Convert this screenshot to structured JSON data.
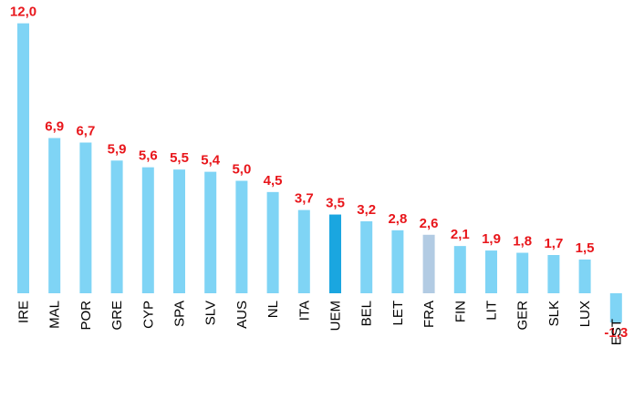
{
  "chart_data": {
    "type": "bar",
    "title": "",
    "xlabel": "",
    "ylabel": "",
    "categories": [
      "IRE",
      "MAL",
      "POR",
      "GRE",
      "CYP",
      "SPA",
      "SLV",
      "AUS",
      "NL",
      "ITA",
      "UEM",
      "BEL",
      "LET",
      "FRA",
      "FIN",
      "LIT",
      "GER",
      "SLK",
      "LUX",
      "EST"
    ],
    "values": [
      12.0,
      6.9,
      6.7,
      5.9,
      5.6,
      5.5,
      5.4,
      5.0,
      4.5,
      3.7,
      3.5,
      3.2,
      2.8,
      2.6,
      2.1,
      1.9,
      1.8,
      1.7,
      1.5,
      -1.3
    ],
    "labels": [
      "12,0",
      "6,9",
      "6,7",
      "5,9",
      "5,6",
      "5,5",
      "5,4",
      "5,0",
      "4,5",
      "3,7",
      "3,5",
      "3,2",
      "2,8",
      "2,6",
      "2,1",
      "1,9",
      "1,8",
      "1,7",
      "1,5",
      "-1,3"
    ],
    "ylim": [
      -1.3,
      12.0
    ],
    "grid": false,
    "legend": "none",
    "colors": {
      "default": "#7fd4f5",
      "highlight": {
        "UEM": "#1aa6e0",
        "FRA": "#b2cbe3"
      },
      "value_label": "#e8161b",
      "category_label": "#000000"
    }
  }
}
